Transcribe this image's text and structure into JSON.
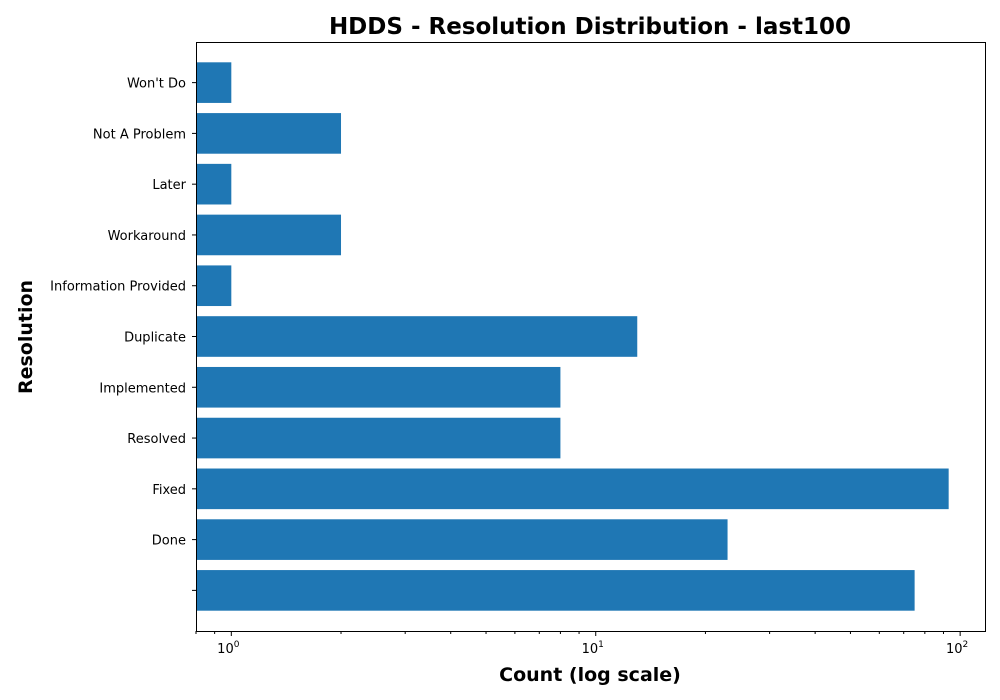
{
  "chart_data": {
    "type": "bar",
    "orientation": "horizontal",
    "title": "HDDS - Resolution Distribution - last100",
    "xlabel": "Count (log scale)",
    "ylabel": "Resolution",
    "x_scale": "log",
    "xlim": [
      0.8,
      117
    ],
    "x_ticks": [
      1,
      10,
      100
    ],
    "x_tick_labels": [
      {
        "base": "10",
        "exp": "0"
      },
      {
        "base": "10",
        "exp": "1"
      },
      {
        "base": "10",
        "exp": "2"
      }
    ],
    "categories": [
      "",
      "Done",
      "Fixed",
      "Resolved",
      "Implemented",
      "Duplicate",
      "Information Provided",
      "Workaround",
      "Later",
      "Not A Problem",
      "Won't Do"
    ],
    "values": [
      75,
      23,
      93,
      8,
      8,
      13,
      1,
      2,
      1,
      2,
      1
    ],
    "bar_color": "#1f77b4",
    "grid": false,
    "legend": false
  }
}
